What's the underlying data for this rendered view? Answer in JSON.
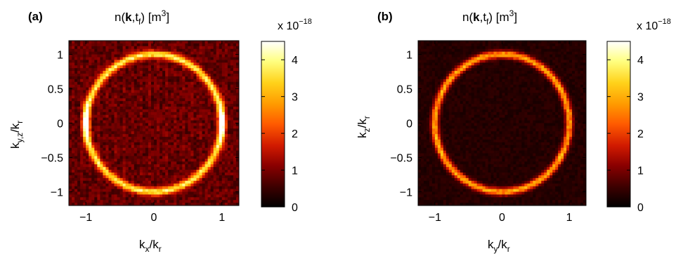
{
  "chart_data": [
    {
      "type": "heatmap",
      "panel_label": "(a)",
      "title": {
        "prefix": "n(",
        "bold": "k",
        "mid": ",t",
        "sub": "f",
        "suffix": ")  [m",
        "sup": "3",
        "end": "]"
      },
      "xlabel": {
        "main": "k",
        "sub": "x",
        "rest": "/k",
        "sub2": "r"
      },
      "ylabel": {
        "main": "k",
        "sub": "y,z",
        "rest": "/k",
        "sub2": "r"
      },
      "xlim": [
        -1.25,
        1.25
      ],
      "ylim": [
        -1.2,
        1.2
      ],
      "xticks": [
        -1,
        0,
        1
      ],
      "xtick_labels": [
        "−1",
        "0",
        "1"
      ],
      "yticks": [
        1,
        0.5,
        0,
        -0.5,
        -1
      ],
      "ytick_labels": [
        "1",
        "0.5",
        "0",
        "−0.5",
        "−1"
      ],
      "colorbar": {
        "range": [
          0,
          4.5
        ],
        "ticks": [
          0,
          1,
          2,
          3,
          4
        ],
        "tick_labels": [
          "0",
          "1",
          "2",
          "3",
          "4"
        ],
        "multiplier": {
          "base": "x 10",
          "exp": "−18"
        }
      },
      "feature": "ring of radius 1 (k = k_r) with peak intensity ≈4.5e-18 at k_x = ±1, hazy background ≈0.8e-18",
      "ring_radius": 1.0,
      "ring_peak": 2.9,
      "hot_spots": [
        {
          "x": -1,
          "y": 0,
          "value": 4.5
        },
        {
          "x": 1,
          "y": 0,
          "value": 4.5
        }
      ],
      "background": 0.8
    },
    {
      "type": "heatmap",
      "panel_label": "(b)",
      "title": {
        "prefix": "n(",
        "bold": "k",
        "mid": ",t",
        "sub": "f",
        "suffix": ")  [m",
        "sup": "3",
        "end": "]"
      },
      "xlabel": {
        "main": "k",
        "sub": "y",
        "rest": "/k",
        "sub2": "r"
      },
      "ylabel": {
        "main": "k",
        "sub": "z",
        "rest": "/k",
        "sub2": "r"
      },
      "xlim": [
        -1.25,
        1.25
      ],
      "ylim": [
        -1.2,
        1.2
      ],
      "xticks": [
        -1,
        0,
        1
      ],
      "xtick_labels": [
        "−1",
        "0",
        "1"
      ],
      "yticks": [
        1,
        0.5,
        0,
        -0.5,
        -1
      ],
      "ytick_labels": [
        "1",
        "0.5",
        "0",
        "−0.5",
        "−1"
      ],
      "colorbar": {
        "range": [
          0,
          4.5
        ],
        "ticks": [
          0,
          1,
          2,
          3,
          4
        ],
        "tick_labels": [
          "0",
          "1",
          "2",
          "3",
          "4"
        ],
        "multiplier": {
          "base": "x 10",
          "exp": "−18"
        }
      },
      "feature": "uniform ring of radius 1 with peak ≈2.6e-18, speckled dark background",
      "ring_radius": 1.0,
      "ring_peak": 2.6,
      "hot_spots": [],
      "background": 0.35
    }
  ],
  "colors": {
    "colormap": [
      "#000000",
      "#3c0000",
      "#8a0000",
      "#d11a00",
      "#ff5a00",
      "#ff9a00",
      "#ffd21a",
      "#ffff80",
      "#ffffff"
    ]
  }
}
